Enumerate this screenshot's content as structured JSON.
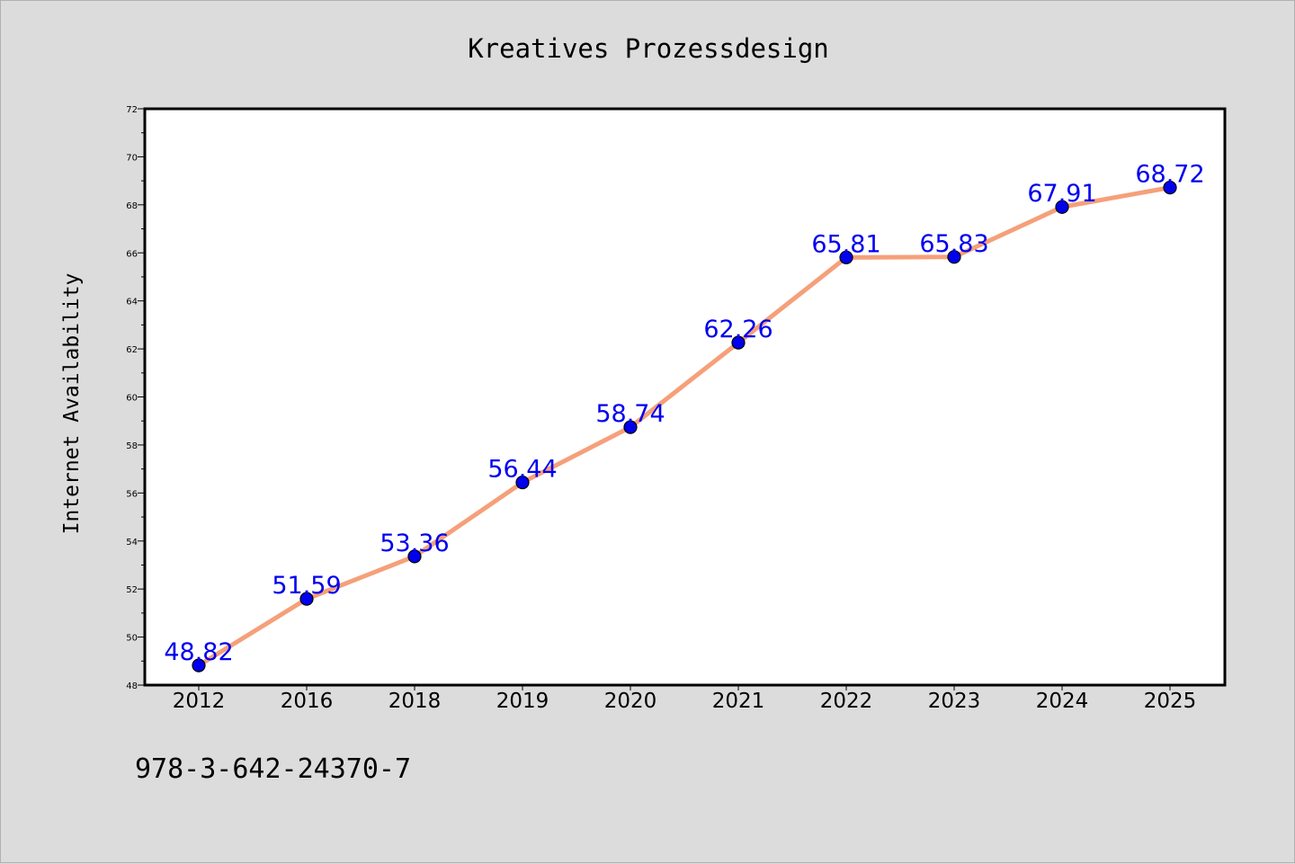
{
  "chart_data": {
    "type": "line",
    "title": "Kreatives Prozessdesign",
    "xlabel": "",
    "ylabel": "Internet Availability",
    "categories": [
      "2012",
      "2016",
      "2018",
      "2019",
      "2020",
      "2021",
      "2022",
      "2023",
      "2024",
      "2025"
    ],
    "series": [
      {
        "values": [
          48.82,
          51.59,
          53.36,
          56.44,
          58.74,
          62.26,
          65.81,
          65.83,
          67.91,
          68.72
        ],
        "data_labels": [
          "48.82",
          "51.59",
          "53.36",
          "56.44",
          "58.74",
          "62.26",
          "65.81",
          "65.83",
          "67.91",
          "68.72"
        ],
        "line_color": "#f5a07a",
        "marker_color": "#0000ee"
      }
    ],
    "ylim": [
      48,
      72
    ],
    "yticks": [
      "48",
      "50",
      "52",
      "54",
      "56",
      "58",
      "60",
      "62",
      "64",
      "66",
      "68",
      "70",
      "72"
    ],
    "grid": false,
    "legend": "none"
  },
  "footer": {
    "isbn": "978-3-642-24370-7"
  },
  "colors": {
    "background": "#dcdcdc",
    "plot_background": "#ffffff",
    "label_color": "#0000ee"
  }
}
